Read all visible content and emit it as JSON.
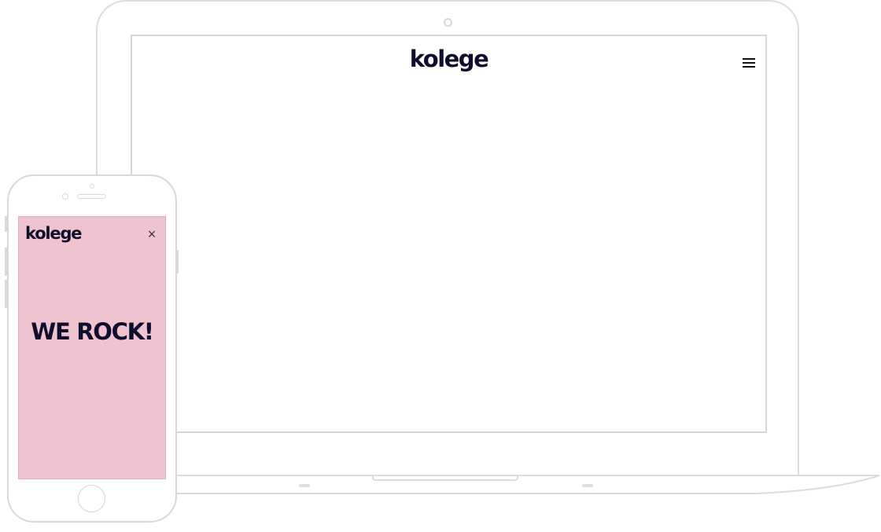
{
  "laptop": {
    "logo_text": "kolege",
    "menu_icon": "hamburger-icon"
  },
  "phone": {
    "logo_text": "kolege",
    "close_icon": "close-icon",
    "close_glyph": "×",
    "headline": "WE ROCK!",
    "screen_color": "#efc3cf"
  },
  "colors": {
    "brand_text": "#0f0f2d",
    "device_outline": "#d8d8d8"
  }
}
